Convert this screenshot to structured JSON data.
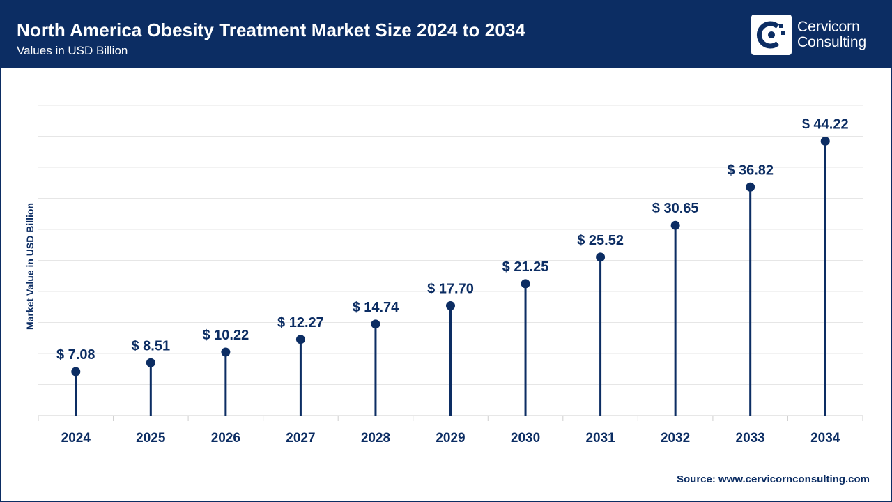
{
  "header": {
    "title": "North America Obesity Treatment Market Size 2024 to 2034",
    "subtitle": "Values in USD Billion"
  },
  "logo": {
    "line1": "Cervicorn",
    "line2": "Consulting",
    "icon": "cervicorn-logo-icon"
  },
  "source": "Source: www.cervicornconsulting.com",
  "colors": {
    "primary": "#0c2d63",
    "grid": "#e6e6e6",
    "background": "#ffffff"
  },
  "chart_data": {
    "type": "lollipop",
    "title": "North America Obesity Treatment Market Size 2024 to 2034",
    "subtitle": "Values in USD Billion",
    "xlabel": "",
    "ylabel": "Market Value in USD Billion",
    "categories": [
      "2024",
      "2025",
      "2026",
      "2027",
      "2028",
      "2029",
      "2030",
      "2031",
      "2032",
      "2033",
      "2034"
    ],
    "values": [
      7.08,
      8.51,
      10.22,
      12.27,
      14.74,
      17.7,
      21.25,
      25.52,
      30.65,
      36.82,
      44.22
    ],
    "labels": [
      "$ 7.08",
      "$ 8.51",
      "$ 10.22",
      "$ 12.27",
      "$ 14.74",
      "$ 17.70",
      "$ 21.25",
      "$ 25.52",
      "$ 30.65",
      "$ 36.82",
      "$ 44.22"
    ],
    "ylim": [
      0,
      50
    ],
    "grid": true,
    "legend": "none"
  }
}
